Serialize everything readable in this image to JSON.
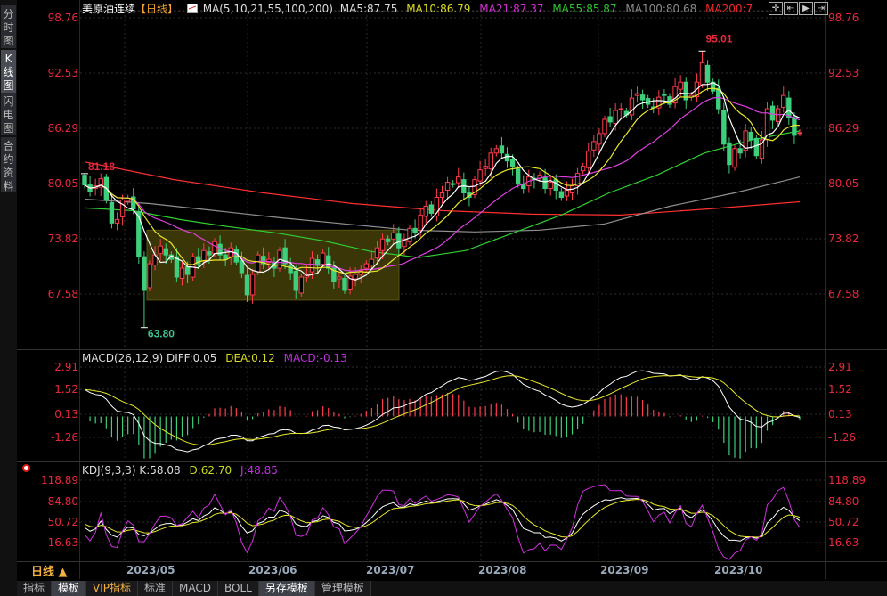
{
  "sidebar": {
    "items": [
      {
        "label": "分时图"
      },
      {
        "label": "K线图"
      },
      {
        "label": "闪电图"
      },
      {
        "label": "合约资料"
      }
    ]
  },
  "header": {
    "symbol": "美原油连续",
    "period": "【日线】",
    "ma_params": "MA(5,10,21,55,100,200)",
    "ma5": "MA5:87.75",
    "ma10": "MA10:86.79",
    "ma21": "MA21:87.37",
    "ma55": "MA55:85.87",
    "ma100": "MA100:80.68",
    "ma200": "MA200:7",
    "icons": [
      "crosshair-icon",
      "zoom-range-icon",
      "play-icon",
      "move-right-icon"
    ]
  },
  "macd_header": {
    "params": "MACD(26,12,9)",
    "diff": "DIFF:0.05",
    "dea": "DEA:0.12",
    "macd": "MACD:-0.13"
  },
  "kdj_header": {
    "params": "KDJ(9,3,3)",
    "k": "K:58.08",
    "d": "D:62.70",
    "j": "J:48.85"
  },
  "footer": {
    "period_label": "日线 ▲",
    "tabs": [
      "指标",
      "模板",
      "VIP指标",
      "标准",
      "MACD",
      "BOLL",
      "另存模板",
      "管理模板"
    ],
    "active_tabs": [
      1,
      6
    ]
  },
  "colors": {
    "up": "#ff3b4e",
    "down": "#3ecf7c",
    "ma5": "#ffffff",
    "ma10": "#e8e82a",
    "ma21": "#e040e0",
    "ma55": "#30d030",
    "ma100": "#909090",
    "ma200": "#ff3030",
    "axis": "#e8283c"
  },
  "chart_data": [
    {
      "type": "candlestick",
      "title": "美原油连续",
      "x_tick_labels": [
        "2023/05",
        "2023/06",
        "2023/07",
        "2023/08",
        "2023/09",
        "2023/10"
      ],
      "y_ticks": [
        "98.76",
        "92.53",
        "86.29",
        "80.05",
        "73.82",
        "67.58"
      ],
      "ylim": [
        62.0,
        100.0
      ],
      "close": [
        79.9,
        79.2,
        79.8,
        80.6,
        78.2,
        75.6,
        76.0,
        78.2,
        78.4,
        77.2,
        71.8,
        68.0,
        71.0,
        72.0,
        73.0,
        72.0,
        71.5,
        69.5,
        70.5,
        69.8,
        71.8,
        71.0,
        72.5,
        72.0,
        73.5,
        72.0,
        71.5,
        72.8,
        71.2,
        70.0,
        67.5,
        69.8,
        72.0,
        71.0,
        71.5,
        70.5,
        72.5,
        71.0,
        70.0,
        68.0,
        69.5,
        69.8,
        71.6,
        70.8,
        72.2,
        70.5,
        69.0,
        69.5,
        68.0,
        69.6,
        69.8,
        70.2,
        71.0,
        71.5,
        72.8,
        73.8,
        73.5,
        74.5,
        72.8,
        73.8,
        75.0,
        74.5,
        76.5,
        77.5,
        76.7,
        78.5,
        79.0,
        80.2,
        80.0,
        80.8,
        79.0,
        78.5,
        80.5,
        81.6,
        82.0,
        83.5,
        84.0,
        83.5,
        82.6,
        82.0,
        80.0,
        79.5,
        80.8,
        80.5,
        81.0,
        79.5,
        80.2,
        79.3,
        78.5,
        79.3,
        79.8,
        81.2,
        82.0,
        83.7,
        84.8,
        85.7,
        87.3,
        87.0,
        88.3,
        88.5,
        87.8,
        89.7,
        90.2,
        89.5,
        89.0,
        88.6,
        89.8,
        90.0,
        89.0,
        91.0,
        91.5,
        89.5,
        90.0,
        91.5,
        93.7,
        91.5,
        90.5,
        88.5,
        84.5,
        82.2,
        84.0,
        83.5,
        86.0,
        85.0,
        83.2,
        85.0,
        88.5,
        87.2,
        88.5,
        90.0,
        87.5,
        85.5,
        85.8
      ],
      "annotations": [
        {
          "text": "81.18",
          "kind": "high"
        },
        {
          "text": "63.80",
          "kind": "low"
        },
        {
          "text": "95.01",
          "kind": "high"
        }
      ],
      "ma55": [
        77.3,
        77.0,
        76.0,
        75.2,
        74.5,
        73.6,
        72.4,
        71.7,
        72.5,
        74.5,
        76.5,
        79.0,
        81.0,
        83.5,
        85.0,
        86.0
      ],
      "ma100": [
        78.3,
        77.8,
        77.0,
        76.2,
        75.5,
        74.8,
        74.6,
        74.8,
        75.5,
        77.5,
        79.0,
        80.8
      ],
      "ma200": [
        82.5,
        80.5,
        79.0,
        77.8,
        77.0,
        76.6,
        76.5,
        77.2,
        78.0
      ],
      "box_range": [
        66.9,
        74.8
      ],
      "ref_line": 77.3
    },
    {
      "type": "macd",
      "y_ticks": [
        "2.91",
        "1.52",
        "0.13",
        "-1.26"
      ],
      "ylim": [
        -2.0,
        3.5
      ]
    },
    {
      "type": "kdj",
      "y_ticks": [
        "118.89",
        "84.80",
        "50.72",
        "16.63"
      ],
      "ylim": [
        -10,
        130
      ]
    }
  ]
}
